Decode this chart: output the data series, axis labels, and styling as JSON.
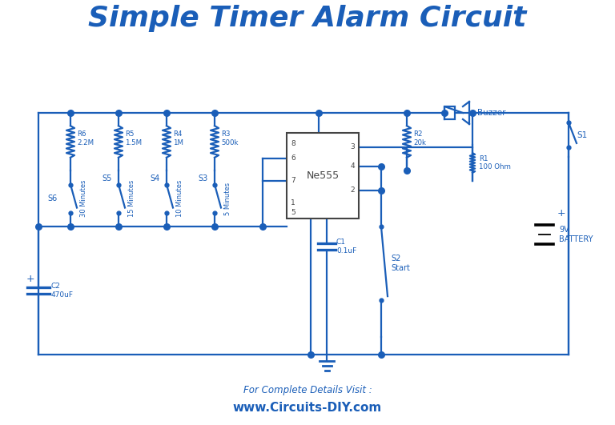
{
  "title": "Simple Timer Alarm Circuit",
  "title_color": "#1a5eb8",
  "title_fontsize": 26,
  "circuit_color": "#1a5eb8",
  "background_color": "#ffffff",
  "footer_line1": "For Complete Details Visit :",
  "footer_line2": "www.Circuits-DIY.com",
  "footer_color": "#1a5eb8",
  "lw": 1.6
}
